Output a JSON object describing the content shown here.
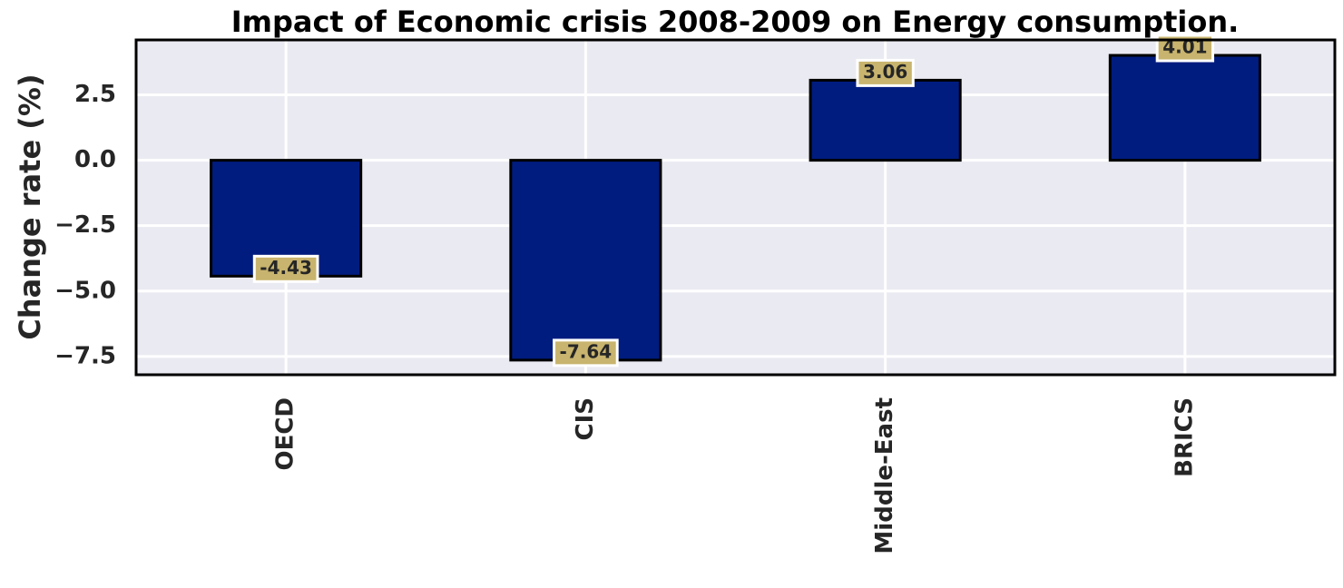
{
  "chart_data": {
    "type": "bar",
    "title": "Impact of Economic crisis 2008-2009 on Energy consumption.",
    "xlabel": "",
    "ylabel": "Change rate (%)",
    "categories": [
      "OECD",
      "CIS",
      "Middle-East",
      "BRICS"
    ],
    "values": [
      -4.43,
      -7.64,
      3.06,
      4.01
    ],
    "data_labels": [
      "-4.43",
      "-7.64",
      "3.06",
      "4.01"
    ],
    "yticks": [
      2.5,
      0.0,
      -2.5,
      -5.0,
      -7.5
    ],
    "ytick_labels": [
      "2.5",
      "0.0",
      "−2.5",
      "−5.0",
      "−7.5"
    ],
    "ylim": [
      -8.2,
      4.6
    ],
    "grid": true,
    "legend": "none",
    "colors": {
      "bar_fill": "#001c7f",
      "bar_edge": "#000000",
      "plot_background": "#eaeaf2",
      "grid": "#ffffff",
      "label_box": "#c8b46e"
    }
  }
}
